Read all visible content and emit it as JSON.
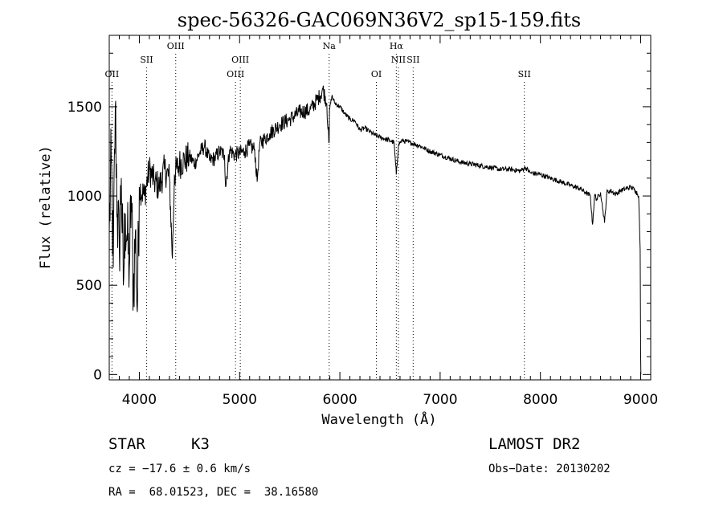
{
  "chart_data": {
    "type": "line",
    "title": "spec-56326-GAC069N36V2_sp15-159.fits",
    "xlabel": "Wavelength (Å)",
    "ylabel": "Flux (relative)",
    "xlim": [
      3700,
      9100
    ],
    "ylim": [
      -30,
      1900
    ],
    "xticks": [
      4000,
      5000,
      6000,
      7000,
      8000,
      9000
    ],
    "xtick_labels": [
      "4000",
      "5000",
      "6000",
      "7000",
      "8000",
      "9000"
    ],
    "yticks": [
      0,
      500,
      1000,
      1500
    ],
    "ytick_labels": [
      "0",
      "500",
      "1000",
      "1500"
    ],
    "grid": false,
    "lines": [
      {
        "label": "OII",
        "x": 3727,
        "row": 2
      },
      {
        "label": "SII",
        "x": 4072,
        "row": 1
      },
      {
        "label": "OIII",
        "x": 4363,
        "row": 0
      },
      {
        "label": "OIII",
        "x": 4959,
        "row": 2
      },
      {
        "label": "OIII",
        "x": 5007,
        "row": 1
      },
      {
        "label": "Na",
        "x": 5893,
        "row": 0
      },
      {
        "label": "OI",
        "x": 6364,
        "row": 2
      },
      {
        "label": "Hα",
        "x": 6563,
        "row": 0
      },
      {
        "label": "NII",
        "x": 6584,
        "row": 1
      },
      {
        "label": "SII",
        "x": 6731,
        "row": 1
      },
      {
        "label": "SII",
        "x": 7840,
        "row": 2
      }
    ],
    "series": [
      {
        "x": [
          3700,
          3720,
          3740,
          3760,
          3780,
          3800,
          3820,
          3840,
          3860,
          3880,
          3900,
          3920,
          3940,
          3960,
          3980,
          4000,
          4050,
          4100,
          4150,
          4200,
          4250,
          4300,
          4330,
          4350,
          4400,
          4450,
          4500,
          4550,
          4600,
          4650,
          4700,
          4750,
          4800,
          4850,
          4860,
          4900,
          4950,
          5000,
          5050,
          5100,
          5150,
          5175,
          5200,
          5250,
          5300,
          5400,
          5500,
          5600,
          5700,
          5800,
          5830,
          5870,
          5890,
          5893,
          5896,
          5920,
          5950,
          6000,
          6050,
          6100,
          6150,
          6200,
          6250,
          6300,
          6350,
          6400,
          6450,
          6500,
          6540,
          6563,
          6585,
          6620,
          6700,
          6800,
          6900,
          7000,
          7100,
          7200,
          7300,
          7400,
          7500,
          7600,
          7700,
          7800,
          7850,
          7900,
          8000,
          8100,
          8200,
          8300,
          8400,
          8450,
          8498,
          8520,
          8542,
          8560,
          8600,
          8640,
          8662,
          8700,
          8750,
          8800,
          8850,
          8900,
          8950,
          8980,
          8995,
          9000,
          9002
        ],
        "y": [
          800,
          1200,
          600,
          1500,
          900,
          700,
          1100,
          500,
          900,
          750,
          600,
          1000,
          450,
          800,
          350,
          1050,
          1000,
          1150,
          1080,
          1050,
          1150,
          1100,
          650,
          1120,
          1180,
          1200,
          1220,
          1180,
          1240,
          1280,
          1200,
          1210,
          1250,
          1230,
          1050,
          1260,
          1230,
          1240,
          1250,
          1280,
          1260,
          1080,
          1290,
          1320,
          1350,
          1400,
          1430,
          1470,
          1480,
          1560,
          1600,
          1520,
          1300,
          1300,
          1480,
          1560,
          1520,
          1500,
          1460,
          1430,
          1420,
          1370,
          1380,
          1360,
          1340,
          1330,
          1320,
          1310,
          1300,
          1120,
          1290,
          1310,
          1300,
          1280,
          1250,
          1230,
          1210,
          1190,
          1180,
          1170,
          1160,
          1150,
          1150,
          1140,
          1160,
          1130,
          1120,
          1100,
          1080,
          1060,
          1040,
          1020,
          1000,
          840,
          1010,
          980,
          1020,
          850,
          1020,
          1030,
          1010,
          1030,
          1040,
          1050,
          1030,
          1000,
          700,
          100,
          0
        ]
      }
    ]
  },
  "meta": {
    "object_type": "STAR",
    "spectral_class": "K3",
    "survey": "LAMOST DR2",
    "cz": "cz = −17.6 ± 0.6 km/s",
    "obs_date": "Obs−Date: 20130202",
    "radec": "RA =  68.01523, DEC =  38.16580"
  }
}
